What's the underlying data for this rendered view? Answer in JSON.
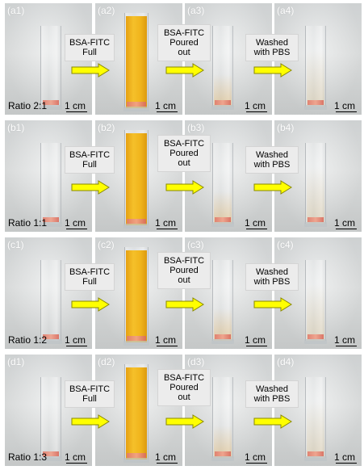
{
  "rows": [
    {
      "ratio": "Ratio 2:1",
      "panels": [
        "(a1)",
        "(a2)",
        "(a3)",
        "(a4)"
      ],
      "steps": [
        {
          "line1": "BSA-FITC",
          "line2": "Full",
          "line3": ""
        },
        {
          "line1": "BSA-FITC",
          "line2": "Poured",
          "line3": "out"
        },
        {
          "line1": "Washed",
          "line2": "with PBS",
          "line3": ""
        }
      ]
    },
    {
      "ratio": "Ratio 1:1",
      "panels": [
        "(b1)",
        "(b2)",
        "(b3)",
        "(b4)"
      ],
      "steps": [
        {
          "line1": "BSA-FITC",
          "line2": "Full",
          "line3": ""
        },
        {
          "line1": "BSA-FITC",
          "line2": "Poured",
          "line3": "out"
        },
        {
          "line1": "Washed",
          "line2": "with PBS",
          "line3": ""
        }
      ]
    },
    {
      "ratio": "Ratio 1:2",
      "panels": [
        "(c1)",
        "(c2)",
        "(c3)",
        "(c4)"
      ],
      "steps": [
        {
          "line1": "BSA-FITC",
          "line2": "Full",
          "line3": ""
        },
        {
          "line1": "BSA-FITC",
          "line2": "Poured",
          "line3": "out"
        },
        {
          "line1": "Washed",
          "line2": "with PBS",
          "line3": ""
        }
      ]
    },
    {
      "ratio": "Ratio 1:3",
      "panels": [
        "(d1)",
        "(d2)",
        "(d3)",
        "(d4)"
      ],
      "steps": [
        {
          "line1": "BSA-FITC",
          "line2": "Full",
          "line3": ""
        },
        {
          "line1": "BSA-FITC",
          "line2": "Poured",
          "line3": "out"
        },
        {
          "line1": "Washed",
          "line2": "with PBS",
          "line3": ""
        }
      ]
    }
  ],
  "scale_label": "1 cm",
  "colors": {
    "arrow_fill": "#ffff00",
    "arrow_stroke": "#8a8a00",
    "liquid": "#f2b51f"
  }
}
